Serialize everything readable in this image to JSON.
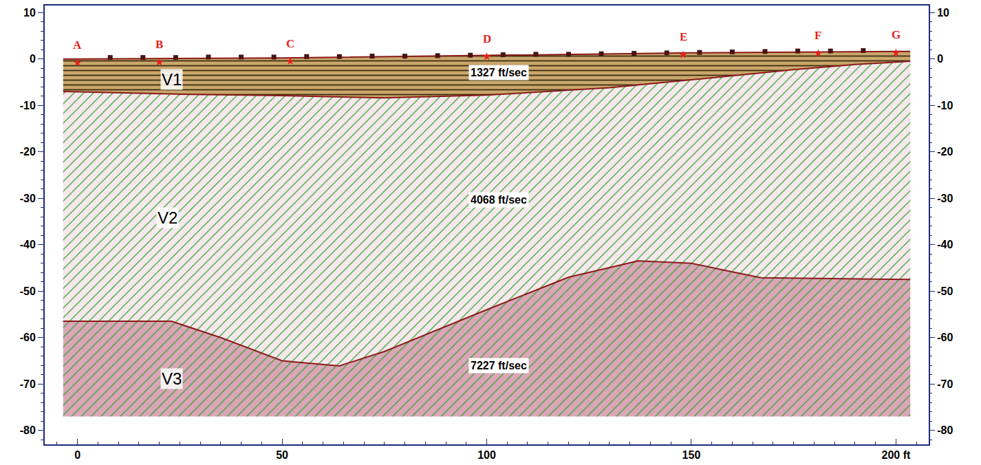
{
  "chart_data": {
    "type": "area",
    "grid": false,
    "xlim": [
      -8,
      208
    ],
    "xticks": [
      0,
      50,
      100,
      150,
      {
        "value": 200,
        "label": "200 ft"
      }
    ],
    "ylim": [
      -83,
      11.5
    ],
    "yticks": [
      -80,
      -70,
      -60,
      -50,
      -40,
      -30,
      -20,
      -10,
      0,
      10
    ],
    "y2lim": [
      -83,
      11.5
    ],
    "y2ticks": [
      -80,
      -70,
      -60,
      -50,
      -40,
      -30,
      -20,
      -10,
      0,
      10
    ],
    "boundaries": [
      {
        "x": [
          -3.5,
          0,
          50,
          100,
          150,
          200,
          203.5
        ],
        "y": [
          0,
          0,
          0.2,
          0.8,
          1.3,
          1.6,
          1.6
        ],
        "color": "#8b1a1a"
      },
      {
        "x": [
          -3.5,
          25,
          50,
          75,
          100,
          130,
          150,
          175,
          190,
          200,
          203.5
        ],
        "y": [
          -7,
          -7.6,
          -7.9,
          -8.4,
          -7.8,
          -6.2,
          -4.5,
          -2.3,
          -1.2,
          -0.7,
          -0.5
        ],
        "color": "#8b1a1a"
      },
      {
        "x": [
          -3.5,
          23,
          35,
          50,
          64,
          75,
          100,
          120,
          137,
          150,
          158,
          167,
          203.5
        ],
        "y": [
          -56.5,
          -56.5,
          -60,
          -65,
          -66.1,
          -63,
          -54,
          -47,
          -43.5,
          -44,
          -45.5,
          -47.1,
          -47.5
        ],
        "color": "#8b1a1a"
      },
      {
        "x": [
          -3.5,
          203.5
        ],
        "y": [
          -77,
          -77
        ]
      }
    ],
    "layers": [
      {
        "name": "V1",
        "velocity_label": "1327 ft/sec",
        "color": "#c9a66b",
        "name_x": 23,
        "name_y": -4.4,
        "label_x": 103,
        "label_y": -2.9
      },
      {
        "name": "V2",
        "velocity_label": "4068 ft/sec",
        "color": "#f6e8ec",
        "name_x": 22,
        "name_y": -34.2,
        "label_x": 103,
        "label_y": -30.4
      },
      {
        "name": "V3",
        "velocity_label": "7227 ft/sec",
        "color": "#dba6b8",
        "name_x": 23,
        "name_y": -68.8,
        "label_x": 103,
        "label_y": -66
      }
    ],
    "stations": {
      "labels": [
        "A",
        "B",
        "C",
        "D",
        "E",
        "F",
        "G"
      ],
      "x": [
        0,
        20,
        52,
        100,
        148,
        181,
        200
      ],
      "y": [
        -0.8,
        -0.7,
        -0.5,
        0.5,
        0.9,
        1.2,
        1.3
      ],
      "color": "#e8201a",
      "marker": "star"
    },
    "geophones": {
      "x": [
        8,
        16,
        24,
        32,
        40,
        48,
        56,
        64,
        72,
        80,
        88,
        96,
        104,
        112,
        120,
        128,
        136,
        144,
        152,
        160,
        168,
        176,
        184,
        192
      ],
      "y": [
        0.3,
        0.3,
        0.3,
        0.4,
        0.4,
        0.4,
        0.5,
        0.5,
        0.6,
        0.6,
        0.7,
        0.8,
        0.9,
        1.0,
        1.0,
        1.1,
        1.2,
        1.3,
        1.4,
        1.5,
        1.6,
        1.7,
        1.7,
        1.8
      ],
      "color": "#4a1414",
      "marker": "square"
    }
  }
}
